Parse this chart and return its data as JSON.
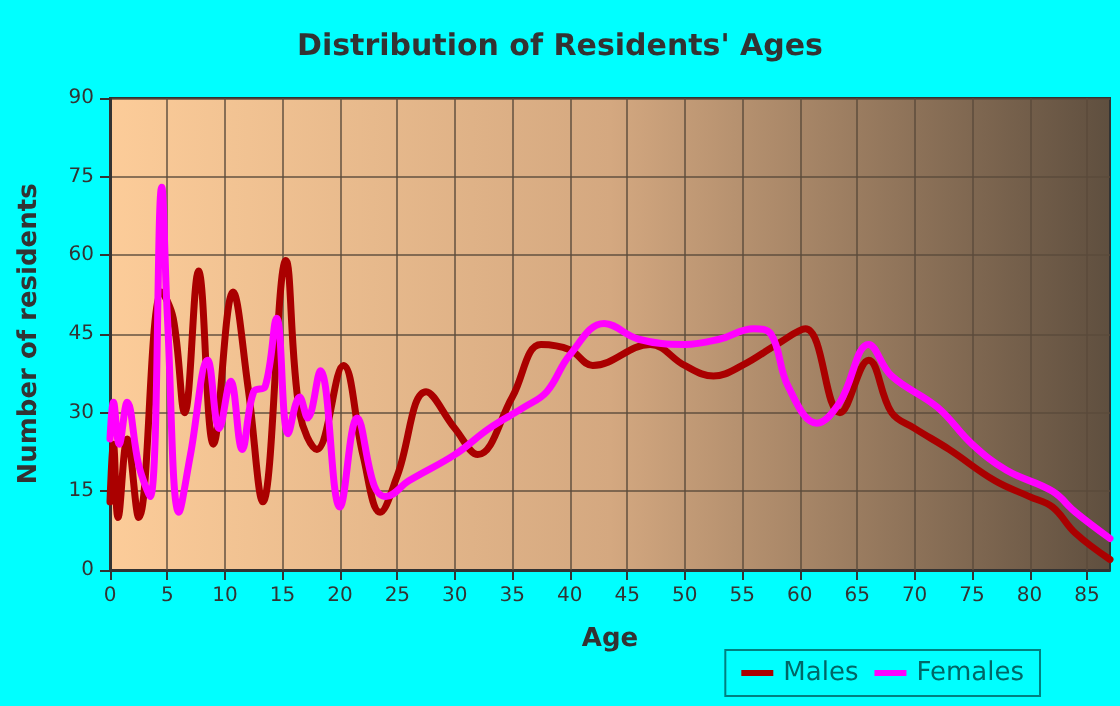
{
  "chart_data": {
    "type": "line",
    "title": "Distribution of Residents' Ages",
    "xlabel": "Age",
    "ylabel": "Number of residents",
    "xlim": [
      0,
      87
    ],
    "xticks": [
      0,
      5,
      10,
      15,
      20,
      25,
      30,
      35,
      40,
      45,
      50,
      55,
      60,
      65,
      70,
      75,
      80,
      85
    ],
    "ylim": [
      0,
      90
    ],
    "yticks": [
      0,
      15,
      30,
      45,
      60,
      75,
      90
    ],
    "grid": true,
    "legend": "bottom right",
    "marker": "none",
    "line_style": "solid",
    "series": [
      {
        "name": "Males",
        "color": "#aa0000",
        "x": [
          0,
          0.3,
          0.7,
          1.5,
          2.5,
          4.5,
          5.5,
          6.5,
          7.7,
          9,
          10.7,
          12,
          13.3,
          15.3,
          16.5,
          18,
          20.3,
          22,
          23.5,
          25,
          27.5,
          30,
          32,
          35,
          37.5,
          40,
          42,
          47,
          50,
          52.5,
          55,
          58,
          60.5,
          63.5,
          66,
          68,
          70,
          73,
          77,
          80,
          82,
          84,
          87
        ],
        "values": [
          13,
          24,
          10,
          25,
          10,
          53,
          48,
          30,
          57,
          24,
          53,
          35,
          13,
          59,
          30,
          23,
          39,
          22,
          11,
          18,
          34,
          27,
          22,
          33,
          43,
          42,
          39,
          43,
          39,
          37,
          39,
          43,
          46,
          30,
          40,
          30,
          27,
          23,
          17,
          14,
          12,
          7,
          2
        ]
      },
      {
        "name": "Females",
        "color": "#ff00ff",
        "x": [
          0,
          0.3,
          0.8,
          1.5,
          2.5,
          3.5,
          4.5,
          5,
          6,
          7,
          8.5,
          9.5,
          10.5,
          11.5,
          12.5,
          13.5,
          14.5,
          15.5,
          16.5,
          17.2,
          18.3,
          20,
          21.5,
          23,
          24,
          26,
          30,
          33,
          36,
          38,
          40,
          43,
          46,
          50,
          53,
          56,
          57.5,
          59,
          61.5,
          63.5,
          66,
          68,
          72,
          75,
          78,
          82,
          84,
          87
        ],
        "values": [
          25,
          32,
          24,
          32,
          20,
          14,
          73,
          48,
          11,
          22,
          40,
          27,
          36,
          23,
          34,
          35,
          48,
          26,
          33,
          29,
          38,
          12,
          29,
          16,
          14,
          17,
          22,
          27,
          31,
          34,
          41,
          47,
          44,
          43,
          44,
          46,
          45,
          35,
          28,
          32,
          43,
          37,
          31,
          24,
          19,
          15,
          11,
          6
        ]
      }
    ]
  }
}
